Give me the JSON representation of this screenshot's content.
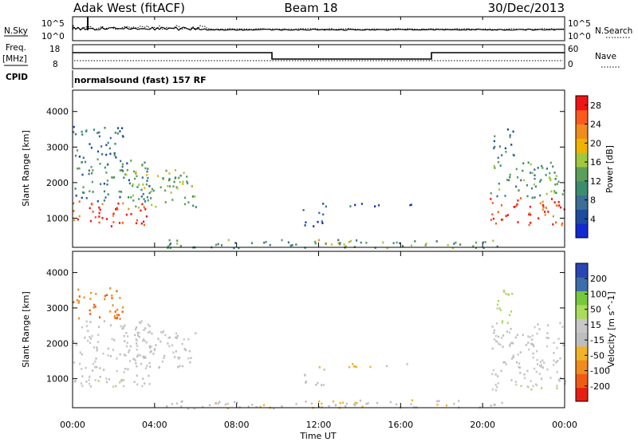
{
  "header": {
    "radar": "Adak West (fitACF)",
    "beam": "Beam 18",
    "date": "30/Dec/2013"
  },
  "summary_panels": {
    "nsky": {
      "left_label": "N.Sky",
      "ticks": [
        "10^5",
        "10^0"
      ],
      "right_label": "N.Search",
      "right_ticks": [
        "10^5",
        "10^0"
      ]
    },
    "freq": {
      "left_label_1": "Freq.",
      "left_label_2": "[MHz]",
      "ticks": [
        "18",
        "8"
      ],
      "right_label": "Nave",
      "right_ticks": [
        "60",
        "0"
      ]
    },
    "cpid": {
      "left_label": "CPID",
      "text": "normalsound (fast) 157 RF"
    }
  },
  "colors": {
    "power_scale": [
      "#1428d2",
      "#1e4ba0",
      "#3c6e96",
      "#3c8c6e",
      "#5aa05a",
      "#a0c83c",
      "#f0b400",
      "#f08c1e",
      "#ff5a1e",
      "#f01414"
    ],
    "velocity_scale": [
      "#2846b4",
      "#3c6eaa",
      "#78c83c",
      "#a8dc5a",
      "#c8c8c8",
      "#bebebe",
      "#f0b428",
      "#f08c1e",
      "#f05a14",
      "#e61e14"
    ]
  },
  "chart_data": [
    {
      "type": "heatmap",
      "name": "power",
      "xlabel": "",
      "ylabel": "Slant Range [km]",
      "x_ticks": [
        "00:00",
        "04:00",
        "08:00",
        "12:00",
        "16:00",
        "20:00",
        "00:00"
      ],
      "xlim_hours": [
        0,
        24
      ],
      "y_ticks": [
        1000,
        2000,
        3000,
        4000
      ],
      "ylim": [
        180,
        4600
      ],
      "colorbar": {
        "label": "Power [dB]",
        "ticks": [
          4,
          8,
          12,
          16,
          20,
          24,
          28
        ],
        "range": [
          0,
          30
        ]
      },
      "regions": [
        {
          "t": [
            0.0,
            3.8
          ],
          "r": [
            800,
            1500
          ],
          "level": 27
        },
        {
          "t": [
            0.0,
            3.8
          ],
          "r": [
            1500,
            2700
          ],
          "level": 10
        },
        {
          "t": [
            0.0,
            2.5
          ],
          "r": [
            2700,
            3600
          ],
          "level": 8
        },
        {
          "t": [
            2.5,
            6.0
          ],
          "r": [
            1300,
            2400
          ],
          "level": 15
        },
        {
          "t": [
            11.2,
            16.5
          ],
          "r": [
            1350,
            1450
          ],
          "level": 6
        },
        {
          "t": [
            11.2,
            12.3
          ],
          "r": [
            800,
            1300
          ],
          "level": 5
        },
        {
          "t": [
            11.5,
            13.5
          ],
          "r": [
            200,
            420
          ],
          "level": 18
        },
        {
          "t": [
            4.5,
            21.0
          ],
          "r": [
            180,
            420
          ],
          "level": 12
        },
        {
          "t": [
            20.3,
            24.0
          ],
          "r": [
            800,
            1600
          ],
          "level": 27
        },
        {
          "t": [
            20.3,
            24.0
          ],
          "r": [
            1600,
            2600
          ],
          "level": 12
        },
        {
          "t": [
            20.5,
            21.5
          ],
          "r": [
            2600,
            3600
          ],
          "level": 8
        }
      ]
    },
    {
      "type": "heatmap",
      "name": "velocity",
      "xlabel": "Time UT",
      "ylabel": "Slant Range [km]",
      "x_ticks": [
        "00:00",
        "04:00",
        "08:00",
        "12:00",
        "16:00",
        "20:00",
        "00:00"
      ],
      "xlim_hours": [
        0,
        24
      ],
      "y_ticks": [
        1000,
        2000,
        3000,
        4000
      ],
      "ylim": [
        180,
        4600
      ],
      "colorbar": {
        "label": "Velocity [m s^-1]",
        "ticks": [
          200,
          100,
          50,
          15,
          -15,
          -50,
          -100,
          -200
        ],
        "range": [
          -250,
          250
        ]
      },
      "regions": [
        {
          "t": [
            0.0,
            3.8
          ],
          "r": [
            800,
            1500
          ],
          "level": 0
        },
        {
          "t": [
            0.0,
            3.8
          ],
          "r": [
            1500,
            2700
          ],
          "level": 0
        },
        {
          "t": [
            0.0,
            2.5
          ],
          "r": [
            2700,
            3600
          ],
          "level": -150
        },
        {
          "t": [
            2.5,
            6.0
          ],
          "r": [
            1300,
            2400
          ],
          "level": 0
        },
        {
          "t": [
            11.2,
            16.5
          ],
          "r": [
            1350,
            1450
          ],
          "level": -60
        },
        {
          "t": [
            11.2,
            12.3
          ],
          "r": [
            800,
            1300
          ],
          "level": 0
        },
        {
          "t": [
            11.5,
            13.5
          ],
          "r": [
            200,
            420
          ],
          "level": -80
        },
        {
          "t": [
            4.5,
            21.0
          ],
          "r": [
            180,
            420
          ],
          "level": -40
        },
        {
          "t": [
            20.3,
            24.0
          ],
          "r": [
            800,
            1600
          ],
          "level": 0
        },
        {
          "t": [
            20.3,
            24.0
          ],
          "r": [
            1600,
            2600
          ],
          "level": 0
        },
        {
          "t": [
            20.5,
            21.5
          ],
          "r": [
            2600,
            3600
          ],
          "level": 60
        },
        {
          "t": [
            0.0,
            2.5
          ],
          "r": [
            800,
            1000
          ],
          "level": 40
        },
        {
          "t": [
            20.3,
            24.0
          ],
          "r": [
            700,
            900
          ],
          "level": 40
        }
      ]
    }
  ]
}
